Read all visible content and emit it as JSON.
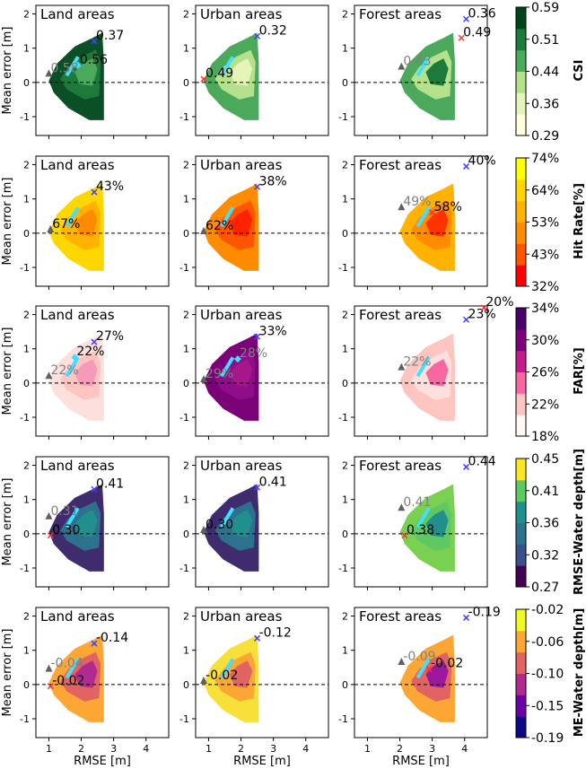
{
  "chart_data": {
    "type": "heatmap",
    "xlabel": "RMSE [m]",
    "ylabel": "Mean error [m]",
    "xlim": [
      0.6,
      4.7
    ],
    "ylim": [
      -1.55,
      2.25
    ],
    "xticks": [
      1,
      2,
      3,
      4
    ],
    "yticks": [
      -1,
      0,
      1,
      2
    ],
    "zero_line": "dashed",
    "columns": [
      "Land areas",
      "Urban areas",
      "Forest areas"
    ],
    "rows": [
      {
        "metric": "CSI",
        "colorbar_label": "CSI",
        "colorbar_ticks": [
          "0.59",
          "0.51",
          "0.44",
          "0.36",
          "0.29"
        ],
        "colors": [
          "#ffffe0",
          "#e5f5b8",
          "#b5e08c",
          "#4aa95a",
          "#1d7a3a",
          "#00441b"
        ],
        "panels": [
          {
            "fill": [
              "#0a4f26",
              "#1d7a3a",
              "#4aa95a"
            ],
            "annotations": [
              {
                "text": "0.37",
                "x": 2.4,
                "y": 1.2,
                "color": "#000000",
                "marker": "x",
                "marker_color": "#4040ff"
              },
              {
                "text": "0.56",
                "x": 1.9,
                "y": 0.5,
                "color": "#000000",
                "marker": "diamond",
                "marker_color": "#40e0ff"
              },
              {
                "text": "0.58",
                "x": 1.0,
                "y": 0.25,
                "color": "#808080",
                "marker": "triangle",
                "marker_color": "#606060"
              }
            ]
          },
          {
            "fill": [
              "#4aa95a",
              "#b5e08c",
              "#e5f5b8"
            ],
            "annotations": [
              {
                "text": "0.32",
                "x": 2.5,
                "y": 1.35,
                "color": "#000000",
                "marker": "x",
                "marker_color": "#4040ff"
              },
              {
                "text": "0.49",
                "x": 0.85,
                "y": 0.1,
                "color": "#000000",
                "marker": "x",
                "marker_color": "#ff3030"
              }
            ]
          },
          {
            "fill": [
              "#4aa95a",
              "#b5e08c",
              "#1d7a3a"
            ],
            "annotations": [
              {
                "text": "0.36",
                "x": 4.05,
                "y": 1.85,
                "color": "#000000",
                "marker": "x",
                "marker_color": "#4040ff"
              },
              {
                "text": "0.49",
                "x": 3.9,
                "y": 1.3,
                "color": "#000000",
                "marker": "x",
                "marker_color": "#ff3030"
              },
              {
                "text": "0.43",
                "x": 2.05,
                "y": 0.45,
                "color": "#808080",
                "marker": "triangle",
                "marker_color": "#606060"
              }
            ]
          }
        ]
      },
      {
        "metric": "Hit Rate",
        "colorbar_label": "Hit Rate[%]",
        "colorbar_ticks": [
          "74%",
          "64%",
          "53%",
          "43%",
          "32%"
        ],
        "colors": [
          "#ff0000",
          "#ff5500",
          "#ff8c00",
          "#ffb300",
          "#ffd700",
          "#ffff00"
        ],
        "panels": [
          {
            "fill": [
              "#ffd700",
              "#ffb300",
              "#ff8c00"
            ],
            "annotations": [
              {
                "text": "43%",
                "x": 2.4,
                "y": 1.2,
                "color": "#000000",
                "marker": "x",
                "marker_color": "#4040ff"
              },
              {
                "text": "67%",
                "x": 1.05,
                "y": 0.1,
                "color": "#000000",
                "marker": "triangle",
                "marker_color": "#606060"
              }
            ]
          },
          {
            "fill": [
              "#ff8c00",
              "#ff5500",
              "#ff2200"
            ],
            "annotations": [
              {
                "text": "38%",
                "x": 2.5,
                "y": 1.35,
                "color": "#000000",
                "marker": "x",
                "marker_color": "#4040ff"
              },
              {
                "text": "62%",
                "x": 0.85,
                "y": 0.05,
                "color": "#000000",
                "marker": "triangle",
                "marker_color": "#606060"
              }
            ]
          },
          {
            "fill": [
              "#ffb300",
              "#ff8c00",
              "#ff3300"
            ],
            "annotations": [
              {
                "text": "40%",
                "x": 4.05,
                "y": 1.95,
                "color": "#000000",
                "marker": "x",
                "marker_color": "#4040ff"
              },
              {
                "text": "49%",
                "x": 2.05,
                "y": 0.75,
                "color": "#808080",
                "marker": "triangle",
                "marker_color": "#606060"
              },
              {
                "text": "58%",
                "x": 3.0,
                "y": 0.6,
                "color": "#000000",
                "marker": "x",
                "marker_color": "#ff3030"
              }
            ]
          }
        ]
      },
      {
        "metric": "FAR",
        "colorbar_label": "FAR[%]",
        "colorbar_ticks": [
          "34%",
          "30%",
          "26%",
          "22%",
          "18%"
        ],
        "colors": [
          "#fff7f3",
          "#fcc5c0",
          "#f768a1",
          "#c51b8a",
          "#7a0177",
          "#49006a"
        ],
        "panels": [
          {
            "fill": [
              "#fde0dd",
              "#fcc5c0",
              "#f59ab8"
            ],
            "annotations": [
              {
                "text": "27%",
                "x": 2.4,
                "y": 1.2,
                "color": "#000000",
                "marker": "x",
                "marker_color": "#4040ff"
              },
              {
                "text": "22%",
                "x": 1.8,
                "y": 0.75,
                "color": "#000000",
                "marker": "diamond",
                "marker_color": "#40e0ff"
              },
              {
                "text": "22%",
                "x": 1.0,
                "y": 0.2,
                "color": "#808080",
                "marker": "triangle",
                "marker_color": "#606060"
              }
            ]
          },
          {
            "fill": [
              "#7a0177",
              "#8e0d8a",
              "#a8178a"
            ],
            "annotations": [
              {
                "text": "33%",
                "x": 2.5,
                "y": 1.35,
                "color": "#000000",
                "marker": "x",
                "marker_color": "#4040ff"
              },
              {
                "text": "28%",
                "x": 1.9,
                "y": 0.7,
                "color": "#808080",
                "marker": "diamond",
                "marker_color": "#40e0ff"
              },
              {
                "text": "29%",
                "x": 0.85,
                "y": 0.1,
                "color": "#808080",
                "marker": "triangle",
                "marker_color": "#606060"
              }
            ]
          },
          {
            "fill": [
              "#fcc5c0",
              "#fde0dd",
              "#f768a1"
            ],
            "annotations": [
              {
                "text": "23%",
                "x": 4.05,
                "y": 1.85,
                "color": "#000000",
                "marker": "x",
                "marker_color": "#4040ff"
              },
              {
                "text": "20%",
                "x": 4.6,
                "y": 2.2,
                "color": "#000000",
                "marker": "x",
                "marker_color": "#ff3030"
              },
              {
                "text": "22%",
                "x": 2.05,
                "y": 0.45,
                "color": "#808080",
                "marker": "triangle",
                "marker_color": "#606060"
              }
            ]
          }
        ]
      },
      {
        "metric": "RMSE-Water depth",
        "colorbar_label": "RMSE-Water depth[m]",
        "colorbar_ticks": [
          "0.45",
          "0.41",
          "0.36",
          "0.32",
          "0.27"
        ],
        "colors": [
          "#440154",
          "#3b4f8a",
          "#2c728e",
          "#21908d",
          "#5ec962",
          "#fde725"
        ],
        "panels": [
          {
            "fill": [
              "#3f2c6e",
              "#2c728e",
              "#21908d"
            ],
            "annotations": [
              {
                "text": "0.41",
                "x": 2.4,
                "y": 1.3,
                "color": "#000000",
                "marker": "x",
                "marker_color": "#4040ff"
              },
              {
                "text": "0.31",
                "x": 1.0,
                "y": 0.5,
                "color": "#808080",
                "marker": "triangle",
                "marker_color": "#606060"
              },
              {
                "text": "0.30",
                "x": 1.05,
                "y": -0.05,
                "color": "#000000",
                "marker": "x",
                "marker_color": "#ff3030"
              }
            ]
          },
          {
            "fill": [
              "#3f2c6e",
              "#2c728e",
              "#21908d"
            ],
            "annotations": [
              {
                "text": "0.41",
                "x": 2.5,
                "y": 1.35,
                "color": "#000000",
                "marker": "x",
                "marker_color": "#4040ff"
              },
              {
                "text": "0.30",
                "x": 0.85,
                "y": 0.1,
                "color": "#000000",
                "marker": "triangle",
                "marker_color": "#606060"
              }
            ]
          },
          {
            "fill": [
              "#7ad151",
              "#5ec962",
              "#21908d"
            ],
            "annotations": [
              {
                "text": "0.44",
                "x": 4.05,
                "y": 1.95,
                "color": "#000000",
                "marker": "x",
                "marker_color": "#4040ff"
              },
              {
                "text": "0.41",
                "x": 2.05,
                "y": 0.75,
                "color": "#808080",
                "marker": "triangle",
                "marker_color": "#606060"
              },
              {
                "text": "0.38",
                "x": 2.15,
                "y": -0.05,
                "color": "#000000",
                "marker": "x",
                "marker_color": "#ff3030"
              }
            ]
          }
        ]
      },
      {
        "metric": "ME-Water depth",
        "colorbar_label": "ME-Water depth[m]",
        "colorbar_ticks": [
          "-0.02",
          "-0.06",
          "-0.10",
          "-0.15",
          "-0.19"
        ],
        "colors": [
          "#0d0887",
          "#6a00a8",
          "#b12a90",
          "#e16462",
          "#fca636",
          "#f0f921"
        ],
        "panels": [
          {
            "fill": [
              "#fca636",
              "#e16462",
              "#b12a90"
            ],
            "annotations": [
              {
                "text": "-0.14",
                "x": 2.4,
                "y": 1.2,
                "color": "#000000",
                "marker": "x",
                "marker_color": "#4040ff"
              },
              {
                "text": "-0.04",
                "x": 1.0,
                "y": 0.45,
                "color": "#808080",
                "marker": "triangle",
                "marker_color": "#606060"
              },
              {
                "text": "-0.02",
                "x": 1.05,
                "y": -0.05,
                "color": "#000000",
                "marker": "x",
                "marker_color": "#ff3030"
              }
            ]
          },
          {
            "fill": [
              "#f7e03a",
              "#fca636",
              "#e16462"
            ],
            "annotations": [
              {
                "text": "-0.12",
                "x": 2.5,
                "y": 1.35,
                "color": "#000000",
                "marker": "x",
                "marker_color": "#4040ff"
              },
              {
                "text": "-0.02",
                "x": 0.85,
                "y": 0.1,
                "color": "#000000",
                "marker": "triangle",
                "marker_color": "#606060"
              }
            ]
          },
          {
            "fill": [
              "#fca636",
              "#e16462",
              "#9c179e"
            ],
            "annotations": [
              {
                "text": "-0.19",
                "x": 4.05,
                "y": 1.95,
                "color": "#000000",
                "marker": "x",
                "marker_color": "#4040ff"
              },
              {
                "text": "-0.09",
                "x": 2.05,
                "y": 0.65,
                "color": "#808080",
                "marker": "triangle",
                "marker_color": "#606060"
              },
              {
                "text": "-0.02",
                "x": 2.9,
                "y": 0.45,
                "color": "#000000",
                "marker": "x",
                "marker_color": "#ff3030"
              }
            ]
          }
        ]
      }
    ]
  }
}
